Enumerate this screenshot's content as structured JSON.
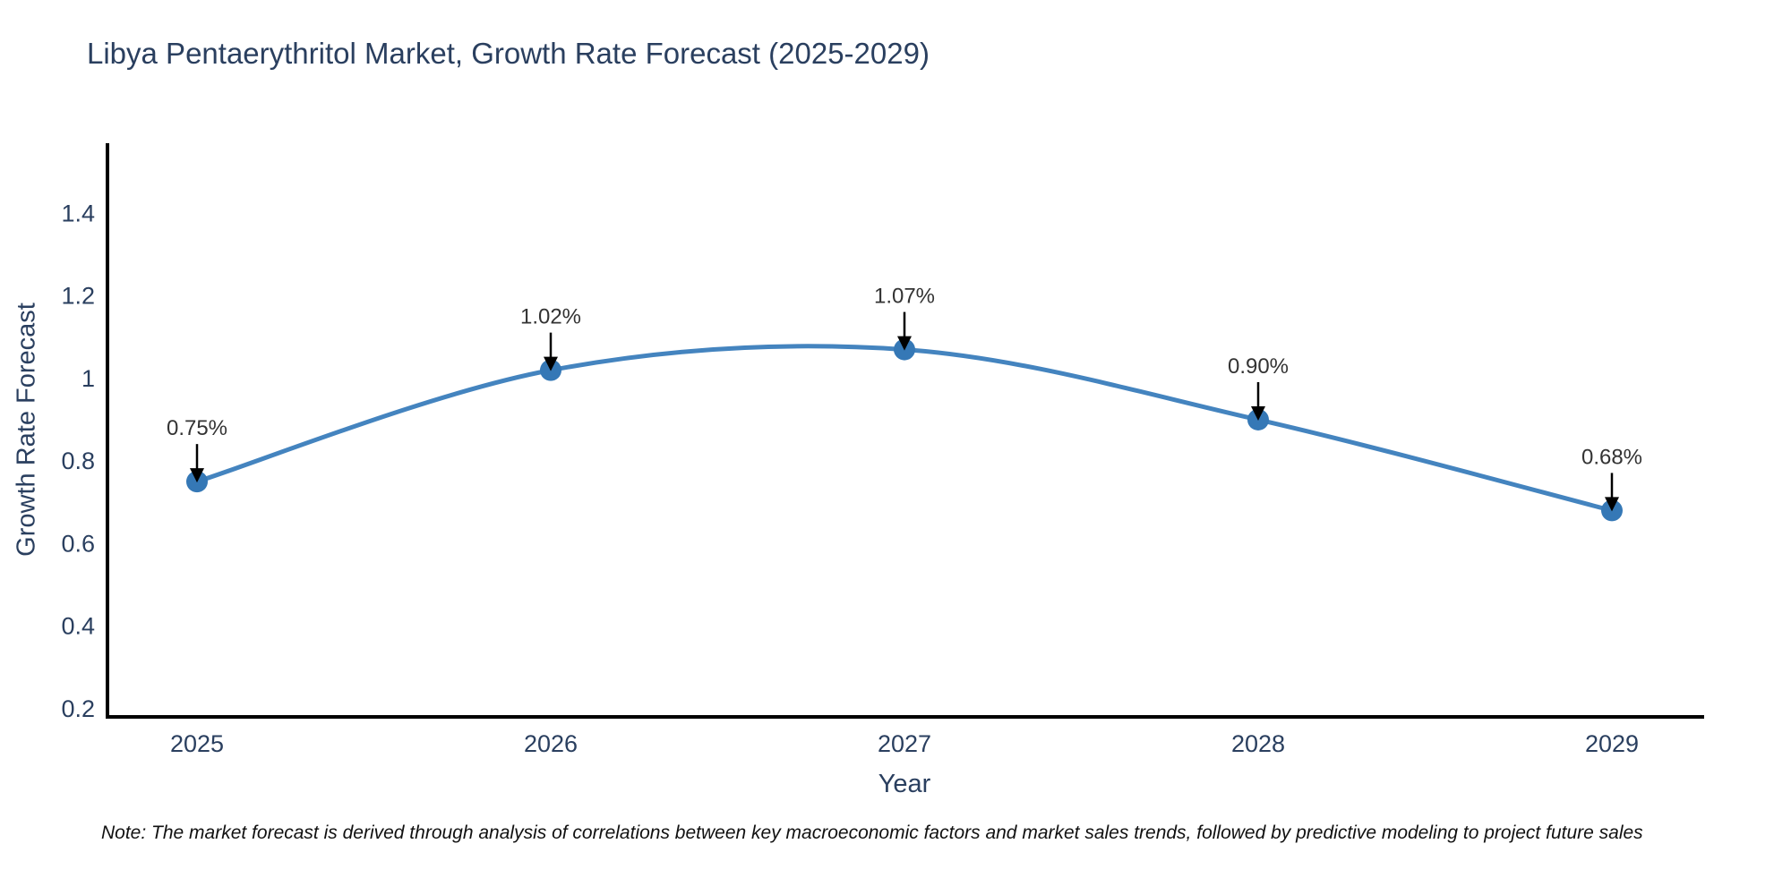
{
  "note": "Note: The market forecast is derived through analysis of correlations between key macroeconomic factors and market sales trends, followed by predictive modeling to project future sales",
  "chart_data": {
    "type": "line",
    "title": "Libya Pentaerythritol Market, Growth Rate Forecast (2025-2029)",
    "xlabel": "Year",
    "ylabel": "Growth Rate Forecast",
    "categories": [
      "2025",
      "2026",
      "2027",
      "2028",
      "2029"
    ],
    "series": [
      {
        "name": "Growth Rate Forecast",
        "values": [
          0.75,
          1.02,
          1.07,
          0.9,
          0.68
        ],
        "point_labels": [
          "0.75%",
          "1.02%",
          "1.07%",
          "0.90%",
          "0.68%"
        ]
      }
    ],
    "line_shape": "spline",
    "markers": true,
    "grid": false,
    "legend": false,
    "ylim": [
      0.18,
      1.57
    ],
    "yticks": [
      0.2,
      0.4,
      0.6,
      0.8,
      1,
      1.2,
      1.4
    ],
    "ytick_labels": [
      "0.2",
      "0.4",
      "0.6",
      "0.8",
      "1",
      "1.2",
      "1.4"
    ],
    "annotation_arrows": true,
    "colors": {
      "line": "#4484bf",
      "marker": "#3578b6",
      "axis": "#000000",
      "title_text": "#2a3f5f",
      "tick_text": "#2a3f5f",
      "annotation_text": "#333333",
      "arrow": "#000000",
      "background": "#ffffff"
    }
  }
}
